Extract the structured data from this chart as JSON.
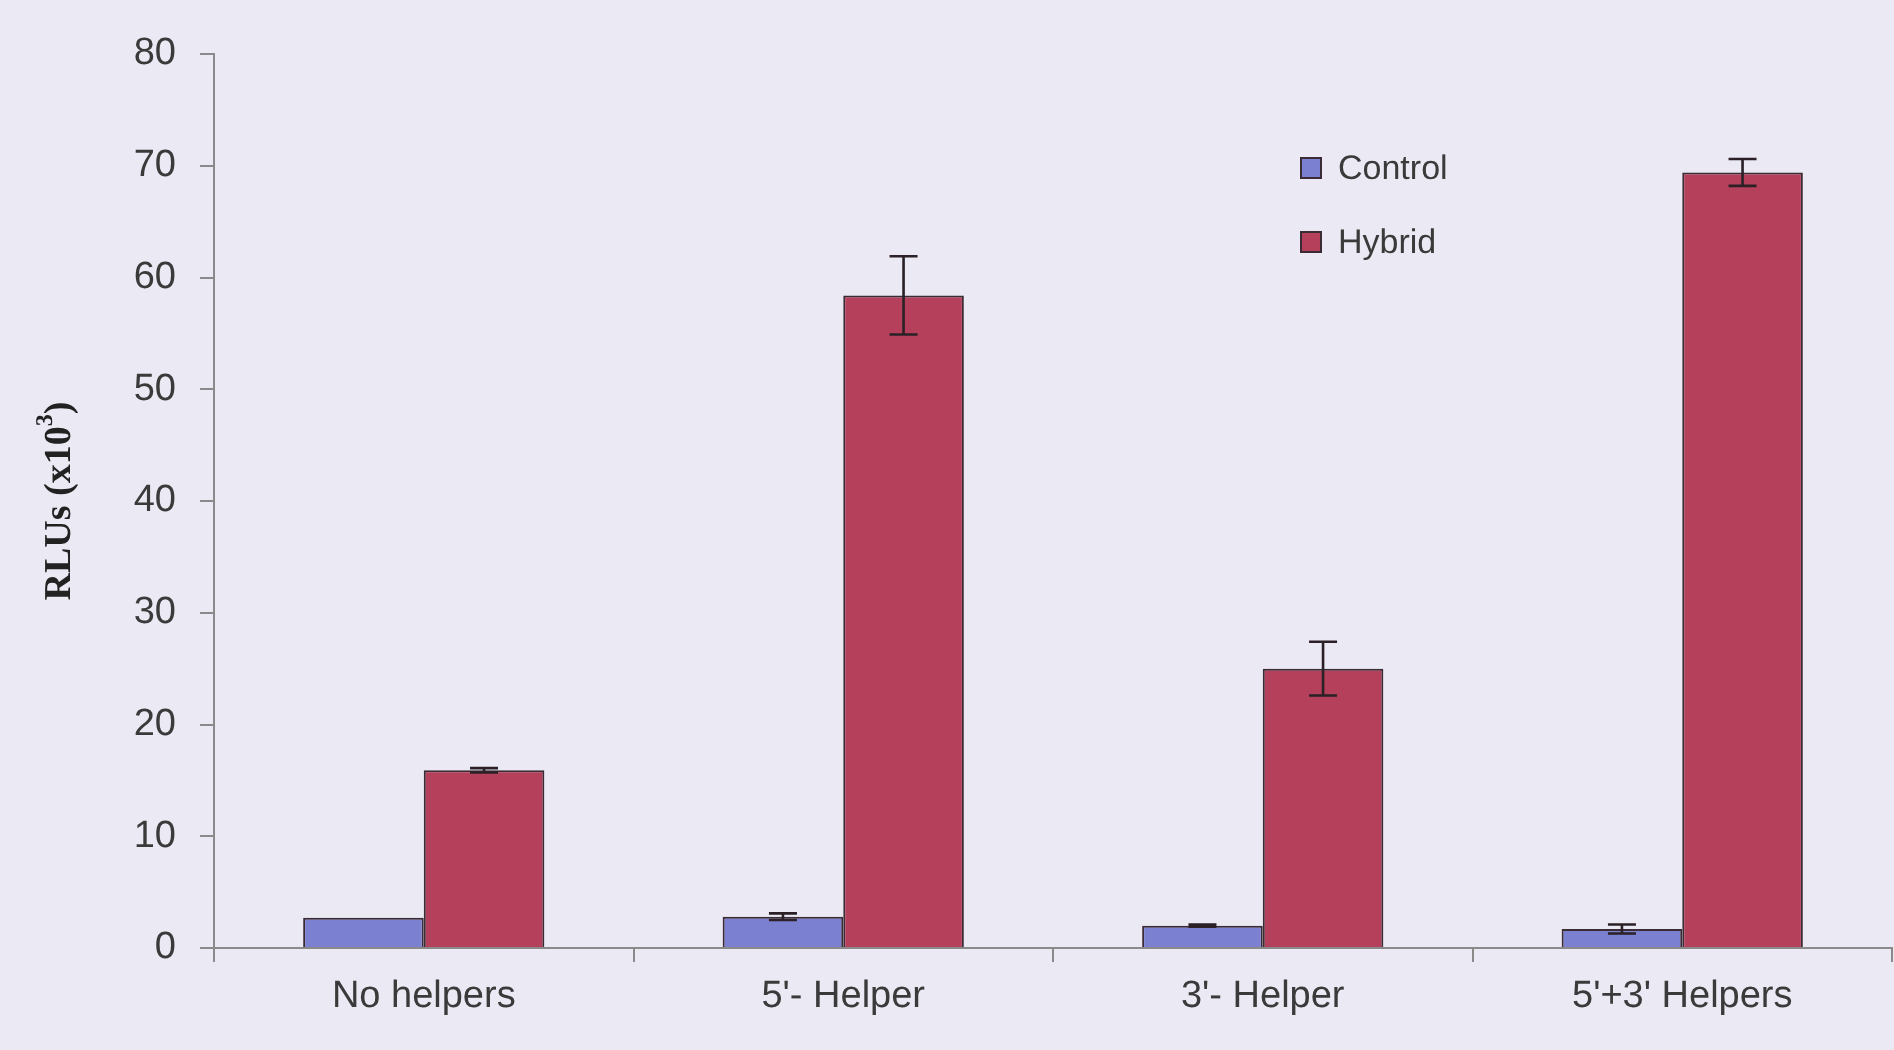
{
  "chart_data": {
    "type": "bar",
    "ylabel": "RLUs (x10$^{3}$)",
    "categories": [
      "No helpers",
      "5'- Helper",
      "3'- Helper",
      "5'+3' Helpers"
    ],
    "series": [
      {
        "name": "Control",
        "color": "#7b80d0",
        "values": [
          2.7,
          2.8,
          2.0,
          1.7
        ],
        "errors": [
          null,
          0.3,
          0.1,
          0.4
        ]
      },
      {
        "name": "Hybrid",
        "color": "#b4405c",
        "values": [
          15.9,
          58.4,
          25.0,
          69.4
        ],
        "errors": [
          0.2,
          3.5,
          2.4,
          1.2
        ]
      }
    ],
    "ylim": [
      0,
      80
    ],
    "yticks": [
      0,
      10,
      20,
      30,
      40,
      50,
      60,
      70,
      80
    ],
    "grid": false,
    "legend": "top right"
  }
}
